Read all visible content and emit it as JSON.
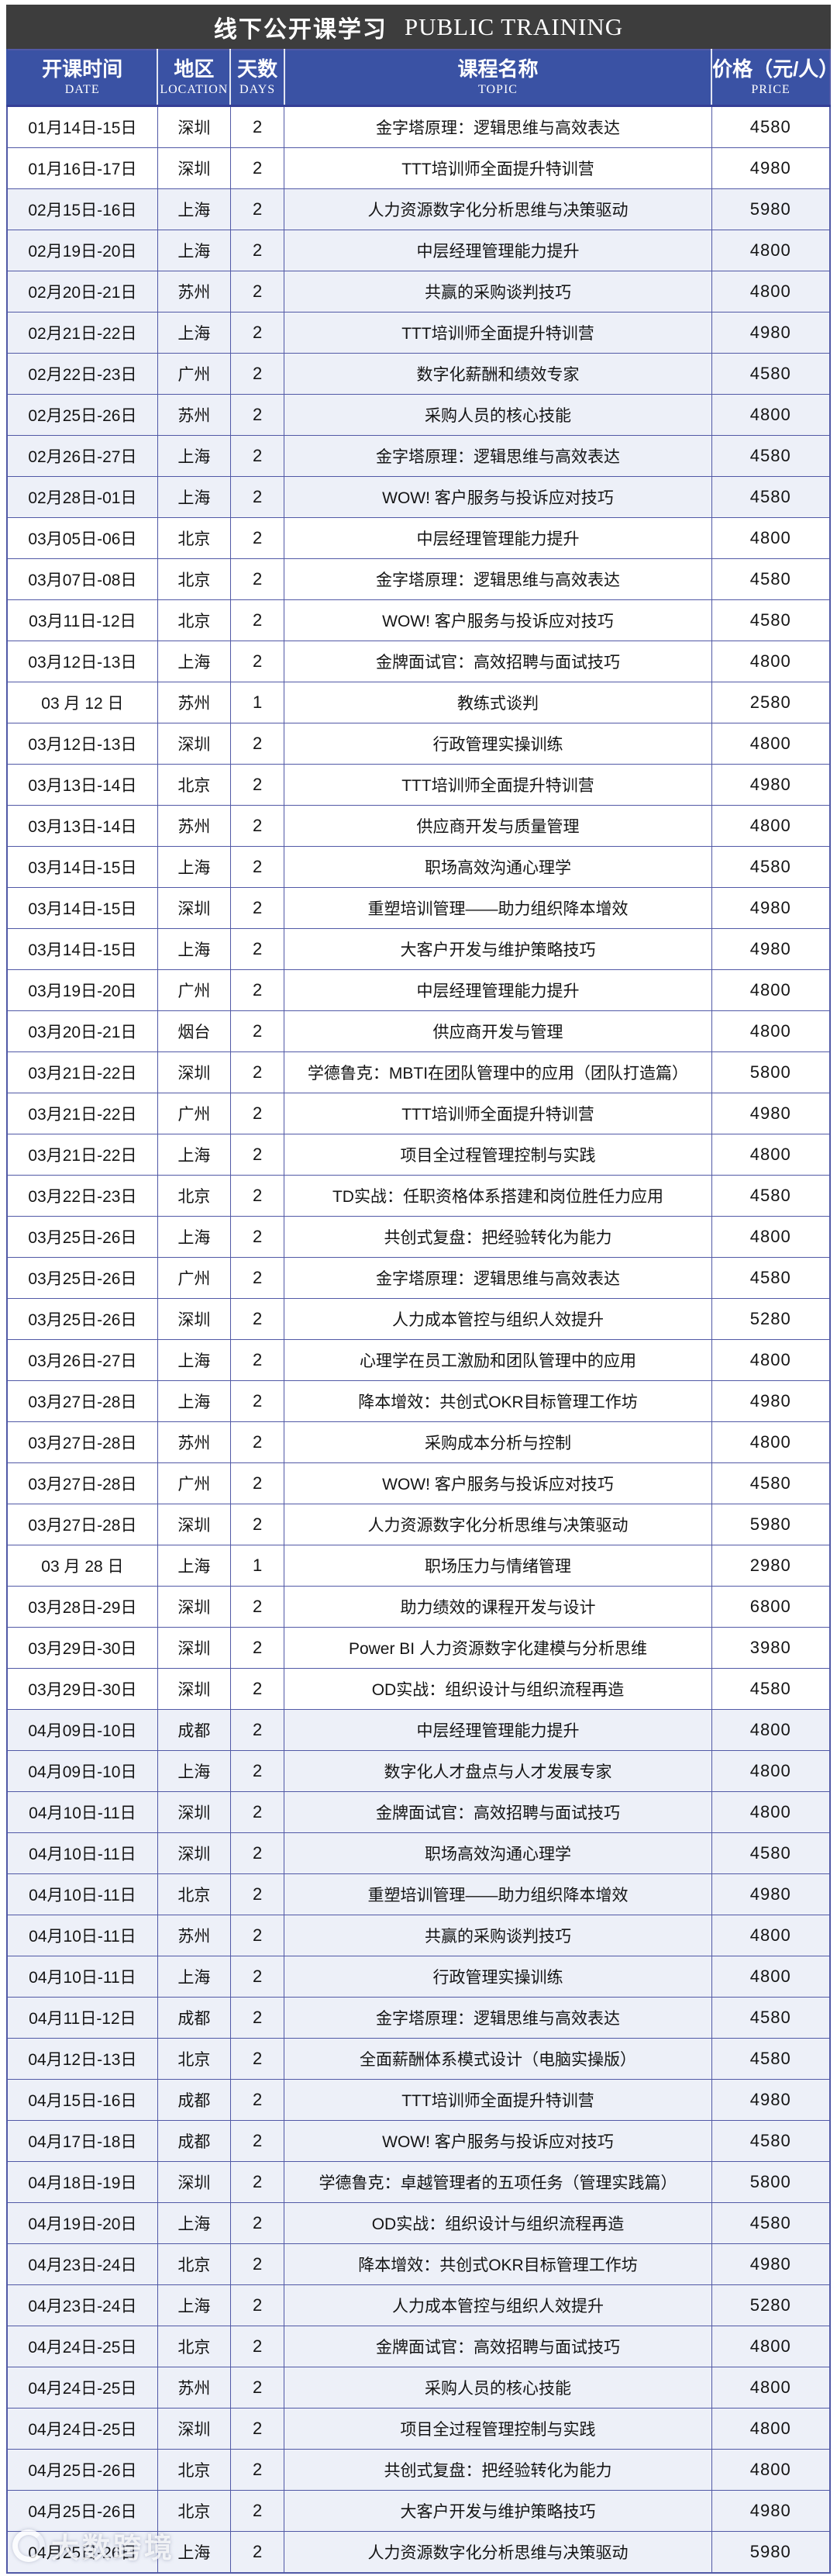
{
  "title": {
    "cn": "线下公开课学习",
    "en": "PUBLIC TRAINING"
  },
  "columns": [
    {
      "cn": "开课时间",
      "en": "DATE"
    },
    {
      "cn": "地区",
      "en": "LOCATION"
    },
    {
      "cn": "天数",
      "en": "DAYS"
    },
    {
      "cn": "课程名称",
      "en": "TOPIC"
    },
    {
      "cn": "价格（元/人）",
      "en": "PRICE"
    }
  ],
  "colors": {
    "title_bar": "#3d3d3d",
    "header_blue": "#3a52a4",
    "grid_border": "#5159a6",
    "tint_row": "#edf0f8",
    "white_row": "#ffffff",
    "tinted_months": [
      "02",
      "04"
    ]
  },
  "watermark": {
    "icon": "circle-logo",
    "text": "大数跨境"
  },
  "rows": [
    {
      "date": "01月14日-15日",
      "location": "深圳",
      "days": "2",
      "topic": "金字塔原理：逻辑思维与高效表达",
      "price": "4580"
    },
    {
      "date": "01月16日-17日",
      "location": "深圳",
      "days": "2",
      "topic": "TTT培训师全面提升特训营",
      "price": "4980"
    },
    {
      "date": "02月15日-16日",
      "location": "上海",
      "days": "2",
      "topic": "人力资源数字化分析思维与决策驱动",
      "price": "5980"
    },
    {
      "date": "02月19日-20日",
      "location": "上海",
      "days": "2",
      "topic": "中层经理管理能力提升",
      "price": "4800"
    },
    {
      "date": "02月20日-21日",
      "location": "苏州",
      "days": "2",
      "topic": "共赢的采购谈判技巧",
      "price": "4800"
    },
    {
      "date": "02月21日-22日",
      "location": "上海",
      "days": "2",
      "topic": "TTT培训师全面提升特训营",
      "price": "4980"
    },
    {
      "date": "02月22日-23日",
      "location": "广州",
      "days": "2",
      "topic": "数字化薪酬和绩效专家",
      "price": "4580"
    },
    {
      "date": "02月25日-26日",
      "location": "苏州",
      "days": "2",
      "topic": "采购人员的核心技能",
      "price": "4800"
    },
    {
      "date": "02月26日-27日",
      "location": "上海",
      "days": "2",
      "topic": "金字塔原理：逻辑思维与高效表达",
      "price": "4580"
    },
    {
      "date": "02月28日-01日",
      "location": "上海",
      "days": "2",
      "topic": "WOW! 客户服务与投诉应对技巧",
      "price": "4580"
    },
    {
      "date": "03月05日-06日",
      "location": "北京",
      "days": "2",
      "topic": "中层经理管理能力提升",
      "price": "4800"
    },
    {
      "date": "03月07日-08日",
      "location": "北京",
      "days": "2",
      "topic": "金字塔原理：逻辑思维与高效表达",
      "price": "4580"
    },
    {
      "date": "03月11日-12日",
      "location": "北京",
      "days": "2",
      "topic": "WOW! 客户服务与投诉应对技巧",
      "price": "4580"
    },
    {
      "date": "03月12日-13日",
      "location": "上海",
      "days": "2",
      "topic": "金牌面试官：高效招聘与面试技巧",
      "price": "4800"
    },
    {
      "date": "03 月 12 日",
      "location": "苏州",
      "days": "1",
      "topic": "教练式谈判",
      "price": "2580"
    },
    {
      "date": "03月12日-13日",
      "location": "深圳",
      "days": "2",
      "topic": "行政管理实操训练",
      "price": "4800"
    },
    {
      "date": "03月13日-14日",
      "location": "北京",
      "days": "2",
      "topic": "TTT培训师全面提升特训营",
      "price": "4980"
    },
    {
      "date": "03月13日-14日",
      "location": "苏州",
      "days": "2",
      "topic": "供应商开发与质量管理",
      "price": "4800"
    },
    {
      "date": "03月14日-15日",
      "location": "上海",
      "days": "2",
      "topic": "职场高效沟通心理学",
      "price": "4580"
    },
    {
      "date": "03月14日-15日",
      "location": "深圳",
      "days": "2",
      "topic": "重塑培训管理——助力组织降本增效",
      "price": "4980"
    },
    {
      "date": "03月14日-15日",
      "location": "上海",
      "days": "2",
      "topic": "大客户开发与维护策略技巧",
      "price": "4980"
    },
    {
      "date": "03月19日-20日",
      "location": "广州",
      "days": "2",
      "topic": "中层经理管理能力提升",
      "price": "4800"
    },
    {
      "date": "03月20日-21日",
      "location": "烟台",
      "days": "2",
      "topic": "供应商开发与管理",
      "price": "4800"
    },
    {
      "date": "03月21日-22日",
      "location": "深圳",
      "days": "2",
      "topic": "学德鲁克：MBTI在团队管理中的应用（团队打造篇）",
      "price": "5800"
    },
    {
      "date": "03月21日-22日",
      "location": "广州",
      "days": "2",
      "topic": "TTT培训师全面提升特训营",
      "price": "4980"
    },
    {
      "date": "03月21日-22日",
      "location": "上海",
      "days": "2",
      "topic": "项目全过程管理控制与实践",
      "price": "4800"
    },
    {
      "date": "03月22日-23日",
      "location": "北京",
      "days": "2",
      "topic": "TD实战：任职资格体系搭建和岗位胜任力应用",
      "price": "4580"
    },
    {
      "date": "03月25日-26日",
      "location": "上海",
      "days": "2",
      "topic": "共创式复盘：把经验转化为能力",
      "price": "4800"
    },
    {
      "date": "03月25日-26日",
      "location": "广州",
      "days": "2",
      "topic": "金字塔原理：逻辑思维与高效表达",
      "price": "4580"
    },
    {
      "date": "03月25日-26日",
      "location": "深圳",
      "days": "2",
      "topic": "人力成本管控与组织人效提升",
      "price": "5280"
    },
    {
      "date": "03月26日-27日",
      "location": "上海",
      "days": "2",
      "topic": "心理学在员工激励和团队管理中的应用",
      "price": "4800"
    },
    {
      "date": "03月27日-28日",
      "location": "上海",
      "days": "2",
      "topic": "降本增效：共创式OKR目标管理工作坊",
      "price": "4980"
    },
    {
      "date": "03月27日-28日",
      "location": "苏州",
      "days": "2",
      "topic": "采购成本分析与控制",
      "price": "4800"
    },
    {
      "date": "03月27日-28日",
      "location": "广州",
      "days": "2",
      "topic": "WOW! 客户服务与投诉应对技巧",
      "price": "4580"
    },
    {
      "date": "03月27日-28日",
      "location": "深圳",
      "days": "2",
      "topic": "人力资源数字化分析思维与决策驱动",
      "price": "5980"
    },
    {
      "date": "03 月 28 日",
      "location": "上海",
      "days": "1",
      "topic": "职场压力与情绪管理",
      "price": "2980"
    },
    {
      "date": "03月28日-29日",
      "location": "深圳",
      "days": "2",
      "topic": "助力绩效的课程开发与设计",
      "price": "6800"
    },
    {
      "date": "03月29日-30日",
      "location": "深圳",
      "days": "2",
      "topic": "Power BI 人力资源数字化建模与分析思维",
      "price": "3980"
    },
    {
      "date": "03月29日-30日",
      "location": "深圳",
      "days": "2",
      "topic": "OD实战：组织设计与组织流程再造",
      "price": "4580"
    },
    {
      "date": "04月09日-10日",
      "location": "成都",
      "days": "2",
      "topic": "中层经理管理能力提升",
      "price": "4800"
    },
    {
      "date": "04月09日-10日",
      "location": "上海",
      "days": "2",
      "topic": "数字化人才盘点与人才发展专家",
      "price": "4800"
    },
    {
      "date": "04月10日-11日",
      "location": "深圳",
      "days": "2",
      "topic": "金牌面试官：高效招聘与面试技巧",
      "price": "4800"
    },
    {
      "date": "04月10日-11日",
      "location": "深圳",
      "days": "2",
      "topic": "职场高效沟通心理学",
      "price": "4580"
    },
    {
      "date": "04月10日-11日",
      "location": "北京",
      "days": "2",
      "topic": "重塑培训管理——助力组织降本增效",
      "price": "4980"
    },
    {
      "date": "04月10日-11日",
      "location": "苏州",
      "days": "2",
      "topic": "共赢的采购谈判技巧",
      "price": "4800"
    },
    {
      "date": "04月10日-11日",
      "location": "上海",
      "days": "2",
      "topic": "行政管理实操训练",
      "price": "4800"
    },
    {
      "date": "04月11日-12日",
      "location": "成都",
      "days": "2",
      "topic": "金字塔原理：逻辑思维与高效表达",
      "price": "4580"
    },
    {
      "date": "04月12日-13日",
      "location": "北京",
      "days": "2",
      "topic": "全面薪酬体系模式设计（电脑实操版）",
      "price": "4580"
    },
    {
      "date": "04月15日-16日",
      "location": "成都",
      "days": "2",
      "topic": "TTT培训师全面提升特训营",
      "price": "4980"
    },
    {
      "date": "04月17日-18日",
      "location": "成都",
      "days": "2",
      "topic": "WOW! 客户服务与投诉应对技巧",
      "price": "4580"
    },
    {
      "date": "04月18日-19日",
      "location": "深圳",
      "days": "2",
      "topic": "学德鲁克：卓越管理者的五项任务（管理实践篇）",
      "price": "5800"
    },
    {
      "date": "04月19日-20日",
      "location": "上海",
      "days": "2",
      "topic": "OD实战：组织设计与组织流程再造",
      "price": "4580"
    },
    {
      "date": "04月23日-24日",
      "location": "北京",
      "days": "2",
      "topic": "降本增效：共创式OKR目标管理工作坊",
      "price": "4980"
    },
    {
      "date": "04月23日-24日",
      "location": "上海",
      "days": "2",
      "topic": "人力成本管控与组织人效提升",
      "price": "5280"
    },
    {
      "date": "04月24日-25日",
      "location": "北京",
      "days": "2",
      "topic": "金牌面试官：高效招聘与面试技巧",
      "price": "4800"
    },
    {
      "date": "04月24日-25日",
      "location": "苏州",
      "days": "2",
      "topic": "采购人员的核心技能",
      "price": "4800"
    },
    {
      "date": "04月24日-25日",
      "location": "深圳",
      "days": "2",
      "topic": "项目全过程管理控制与实践",
      "price": "4800"
    },
    {
      "date": "04月25日-26日",
      "location": "北京",
      "days": "2",
      "topic": "共创式复盘：把经验转化为能力",
      "price": "4800"
    },
    {
      "date": "04月25日-26日",
      "location": "北京",
      "days": "2",
      "topic": "大客户开发与维护策略技巧",
      "price": "4980"
    },
    {
      "date": "04月25日-26日",
      "location": "上海",
      "days": "2",
      "topic": "人力资源数字化分析思维与决策驱动",
      "price": "5980"
    }
  ]
}
